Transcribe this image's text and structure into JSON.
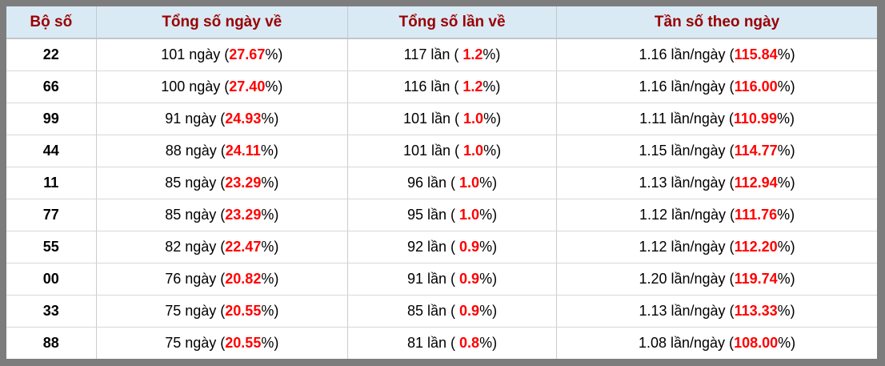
{
  "colors": {
    "frame_gray": "#7d7d7d",
    "header_background": "#d9eaf5",
    "header_text_red": "#990000",
    "highlight_red": "#ff0000",
    "body_text": "#000000",
    "grid_border": "#cccccc"
  },
  "table": {
    "columns": [
      {
        "label": "Bộ số"
      },
      {
        "label": "Tổng số ngày về"
      },
      {
        "label": "Tổng số lần về"
      },
      {
        "label": "Tần số theo ngày"
      }
    ],
    "rows": [
      {
        "pair": "22",
        "days": {
          "pre": "101 ngày (",
          "red": "27.67",
          "post": "%)"
        },
        "times": {
          "pre": "117 lần ( ",
          "red": "1.2",
          "post": "%)"
        },
        "freq": {
          "pre": "1.16 lần/ngày (",
          "red": "115.84",
          "post": "%)"
        }
      },
      {
        "pair": "66",
        "days": {
          "pre": "100 ngày (",
          "red": "27.40",
          "post": "%)"
        },
        "times": {
          "pre": "116 lần ( ",
          "red": "1.2",
          "post": "%)"
        },
        "freq": {
          "pre": "1.16 lần/ngày (",
          "red": "116.00",
          "post": "%)"
        }
      },
      {
        "pair": "99",
        "days": {
          "pre": "91 ngày (",
          "red": "24.93",
          "post": "%)"
        },
        "times": {
          "pre": "101 lần ( ",
          "red": "1.0",
          "post": "%)"
        },
        "freq": {
          "pre": "1.11 lần/ngày (",
          "red": "110.99",
          "post": "%)"
        }
      },
      {
        "pair": "44",
        "days": {
          "pre": "88 ngày (",
          "red": "24.11",
          "post": "%)"
        },
        "times": {
          "pre": "101 lần ( ",
          "red": "1.0",
          "post": "%)"
        },
        "freq": {
          "pre": "1.15 lần/ngày (",
          "red": "114.77",
          "post": "%)"
        }
      },
      {
        "pair": "11",
        "days": {
          "pre": "85 ngày (",
          "red": "23.29",
          "post": "%)"
        },
        "times": {
          "pre": "96 lần ( ",
          "red": "1.0",
          "post": "%)"
        },
        "freq": {
          "pre": "1.13 lần/ngày (",
          "red": "112.94",
          "post": "%)"
        }
      },
      {
        "pair": "77",
        "days": {
          "pre": "85 ngày (",
          "red": "23.29",
          "post": "%)"
        },
        "times": {
          "pre": "95 lần ( ",
          "red": "1.0",
          "post": "%)"
        },
        "freq": {
          "pre": "1.12 lần/ngày (",
          "red": "111.76",
          "post": "%)"
        }
      },
      {
        "pair": "55",
        "days": {
          "pre": "82 ngày (",
          "red": "22.47",
          "post": "%)"
        },
        "times": {
          "pre": "92 lần ( ",
          "red": "0.9",
          "post": "%)"
        },
        "freq": {
          "pre": "1.12 lần/ngày (",
          "red": "112.20",
          "post": "%)"
        }
      },
      {
        "pair": "00",
        "days": {
          "pre": "76 ngày (",
          "red": "20.82",
          "post": "%)"
        },
        "times": {
          "pre": "91 lần ( ",
          "red": "0.9",
          "post": "%)"
        },
        "freq": {
          "pre": "1.20 lần/ngày (",
          "red": "119.74",
          "post": "%)"
        }
      },
      {
        "pair": "33",
        "days": {
          "pre": "75 ngày (",
          "red": "20.55",
          "post": "%)"
        },
        "times": {
          "pre": "85 lần ( ",
          "red": "0.9",
          "post": "%)"
        },
        "freq": {
          "pre": "1.13 lần/ngày (",
          "red": "113.33",
          "post": "%)"
        }
      },
      {
        "pair": "88",
        "days": {
          "pre": "75 ngày (",
          "red": "20.55",
          "post": "%)"
        },
        "times": {
          "pre": "81 lần ( ",
          "red": "0.8",
          "post": "%)"
        },
        "freq": {
          "pre": "1.08 lần/ngày (",
          "red": "108.00",
          "post": "%)"
        }
      }
    ]
  }
}
